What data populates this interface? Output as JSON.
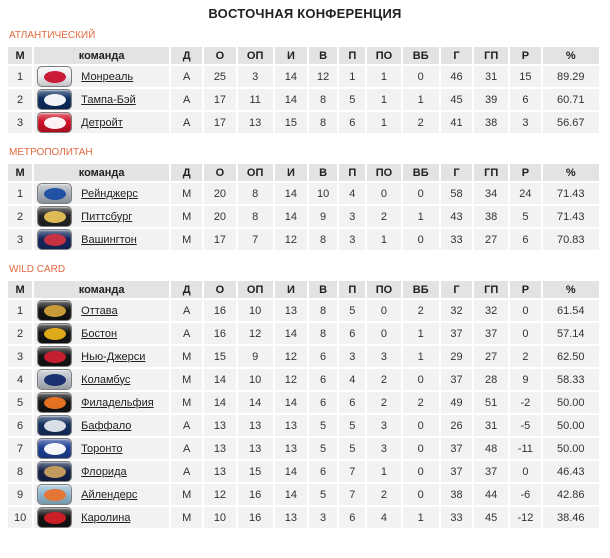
{
  "title": "ВОСТОЧНАЯ КОНФЕРЕНЦИЯ",
  "colors": {
    "title_text": "#231f1f",
    "section_label": "#e2693e",
    "header_cell_bg": "#e3e3e3",
    "data_cell_bg": "#f2f2f2",
    "link_text": "#222222"
  },
  "columns": [
    "М",
    "команда",
    "Д",
    "О",
    "ОП",
    "И",
    "В",
    "П",
    "ПО",
    "ВБ",
    "Г",
    "ГП",
    "Р",
    "%"
  ],
  "sections": [
    {
      "label": "АТЛАНТИЧЕСКИЙ",
      "rows": [
        {
          "pos": 1,
          "team": "Монреаль",
          "logo": {
            "name": "montreal-canadiens-logo",
            "bg": "#eef0f4",
            "fg": "#c8102e"
          },
          "stats": [
            "А",
            25,
            3,
            14,
            12,
            1,
            1,
            0,
            46,
            31,
            15,
            "89.29"
          ]
        },
        {
          "pos": 2,
          "team": "Тампа-Бэй",
          "logo": {
            "name": "tampa-bay-lightning-logo",
            "bg": "#0b2d5e",
            "fg": "#ffffff"
          },
          "stats": [
            "А",
            17,
            11,
            14,
            8,
            5,
            1,
            1,
            45,
            39,
            6,
            "60.71"
          ]
        },
        {
          "pos": 3,
          "team": "Детройт",
          "logo": {
            "name": "detroit-red-wings-logo",
            "bg": "#cf1125",
            "fg": "#ffffff"
          },
          "stats": [
            "А",
            17,
            13,
            15,
            8,
            6,
            1,
            2,
            41,
            38,
            3,
            "56.67"
          ]
        }
      ]
    },
    {
      "label": "МЕТРОПОЛИТАН",
      "rows": [
        {
          "pos": 1,
          "team": "Рейнджерс",
          "logo": {
            "name": "ny-rangers-logo",
            "bg": "#a9b0b8",
            "fg": "#1a4ca3"
          },
          "stats": [
            "М",
            20,
            8,
            14,
            10,
            4,
            0,
            0,
            58,
            34,
            24,
            "71.43"
          ]
        },
        {
          "pos": 2,
          "team": "Питтсбург",
          "logo": {
            "name": "pittsburgh-penguins-logo",
            "bg": "#242424",
            "fg": "#e7c358"
          },
          "stats": [
            "М",
            20,
            8,
            14,
            9,
            3,
            2,
            1,
            43,
            38,
            5,
            "71.43"
          ]
        },
        {
          "pos": 3,
          "team": "Вашингтон",
          "logo": {
            "name": "washington-capitals-logo",
            "bg": "#14275e",
            "fg": "#d03340"
          },
          "stats": [
            "М",
            17,
            7,
            12,
            8,
            3,
            1,
            0,
            33,
            27,
            6,
            "70.83"
          ]
        }
      ]
    },
    {
      "label": "WILD CARD",
      "rows": [
        {
          "pos": 1,
          "team": "Оттава",
          "logo": {
            "name": "ottawa-senators-logo",
            "bg": "#141414",
            "fg": "#d1a23a"
          },
          "stats": [
            "А",
            16,
            10,
            13,
            8,
            5,
            0,
            2,
            32,
            32,
            0,
            "61.54"
          ]
        },
        {
          "pos": 2,
          "team": "Бостон",
          "logo": {
            "name": "boston-bruins-logo",
            "bg": "#141414",
            "fg": "#e9b21a"
          },
          "stats": [
            "А",
            16,
            12,
            14,
            8,
            6,
            0,
            1,
            37,
            37,
            0,
            "57.14"
          ]
        },
        {
          "pos": 3,
          "team": "Нью-Джерси",
          "logo": {
            "name": "new-jersey-devils-logo",
            "bg": "#151515",
            "fg": "#cf1f2f"
          },
          "stats": [
            "М",
            15,
            9,
            12,
            6,
            3,
            3,
            1,
            29,
            27,
            2,
            "62.50"
          ]
        },
        {
          "pos": 4,
          "team": "Коламбус",
          "logo": {
            "name": "columbus-blue-jackets-logo",
            "bg": "#b9bec6",
            "fg": "#13296b"
          },
          "stats": [
            "М",
            14,
            10,
            12,
            6,
            4,
            2,
            0,
            37,
            28,
            9,
            "58.33"
          ]
        },
        {
          "pos": 5,
          "team": "Филадельфия",
          "logo": {
            "name": "philadelphia-flyers-logo",
            "bg": "#141414",
            "fg": "#ef7622"
          },
          "stats": [
            "М",
            14,
            14,
            14,
            6,
            6,
            2,
            2,
            49,
            51,
            -2,
            "50.00"
          ]
        },
        {
          "pos": 6,
          "team": "Баффало",
          "logo": {
            "name": "buffalo-sabres-logo",
            "bg": "#13305f",
            "fg": "#e5e9ee"
          },
          "stats": [
            "А",
            13,
            13,
            13,
            5,
            5,
            3,
            0,
            26,
            31,
            -5,
            "50.00"
          ]
        },
        {
          "pos": 7,
          "team": "Торонто",
          "logo": {
            "name": "toronto-maple-leafs-logo",
            "bg": "#1c3f94",
            "fg": "#ffffff"
          },
          "stats": [
            "А",
            13,
            13,
            13,
            5,
            5,
            3,
            0,
            37,
            48,
            -11,
            "50.00"
          ]
        },
        {
          "pos": 8,
          "team": "Флорида",
          "logo": {
            "name": "florida-panthers-logo",
            "bg": "#15244d",
            "fg": "#c9a15f"
          },
          "stats": [
            "А",
            13,
            15,
            14,
            6,
            7,
            1,
            0,
            37,
            37,
            0,
            "46.43"
          ]
        },
        {
          "pos": 9,
          "team": "Айлендерс",
          "logo": {
            "name": "ny-islanders-logo",
            "bg": "#8fb8d0",
            "fg": "#e8722d"
          },
          "stats": [
            "М",
            12,
            16,
            14,
            5,
            7,
            2,
            0,
            38,
            44,
            -6,
            "42.86"
          ]
        },
        {
          "pos": 10,
          "team": "Каролина",
          "logo": {
            "name": "carolina-hurricanes-logo",
            "bg": "#141414",
            "fg": "#d42027"
          },
          "stats": [
            "М",
            10,
            16,
            13,
            3,
            6,
            4,
            1,
            33,
            45,
            -12,
            "38.46"
          ]
        }
      ]
    }
  ]
}
